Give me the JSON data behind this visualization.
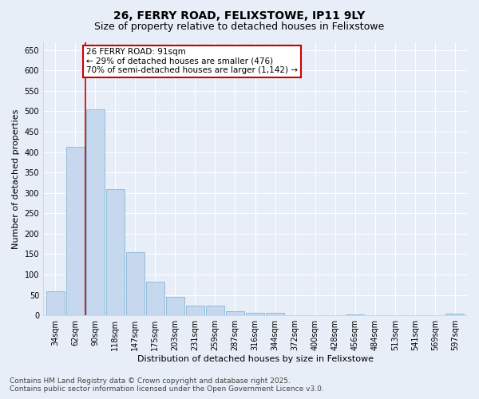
{
  "title": "26, FERRY ROAD, FELIXSTOWE, IP11 9LY",
  "subtitle": "Size of property relative to detached houses in Felixstowe",
  "xlabel": "Distribution of detached houses by size in Felixstowe",
  "ylabel": "Number of detached properties",
  "categories": [
    "34sqm",
    "62sqm",
    "90sqm",
    "118sqm",
    "147sqm",
    "175sqm",
    "203sqm",
    "231sqm",
    "259sqm",
    "287sqm",
    "316sqm",
    "344sqm",
    "372sqm",
    "400sqm",
    "428sqm",
    "456sqm",
    "484sqm",
    "513sqm",
    "541sqm",
    "569sqm",
    "597sqm"
  ],
  "values": [
    60,
    413,
    505,
    310,
    155,
    82,
    46,
    23,
    24,
    10,
    7,
    7,
    0,
    0,
    0,
    3,
    0,
    0,
    0,
    0,
    4
  ],
  "bar_color": "#c5d8ed",
  "bar_edge_color": "#7aafd4",
  "background_color": "#e8eef7",
  "plot_bg_color": "#e8eef7",
  "marker_line_index": 2,
  "annotation_line1": "26 FERRY ROAD: 91sqm",
  "annotation_line2": "← 29% of detached houses are smaller (476)",
  "annotation_line3": "70% of semi-detached houses are larger (1,142) →",
  "annotation_box_color": "#cc0000",
  "ylim": [
    0,
    670
  ],
  "yticks": [
    0,
    50,
    100,
    150,
    200,
    250,
    300,
    350,
    400,
    450,
    500,
    550,
    600,
    650
  ],
  "footer_line1": "Contains HM Land Registry data © Crown copyright and database right 2025.",
  "footer_line2": "Contains public sector information licensed under the Open Government Licence v3.0.",
  "title_fontsize": 10,
  "subtitle_fontsize": 9,
  "xlabel_fontsize": 8,
  "ylabel_fontsize": 8,
  "tick_fontsize": 7,
  "annotation_fontsize": 7.5,
  "footer_fontsize": 6.5
}
